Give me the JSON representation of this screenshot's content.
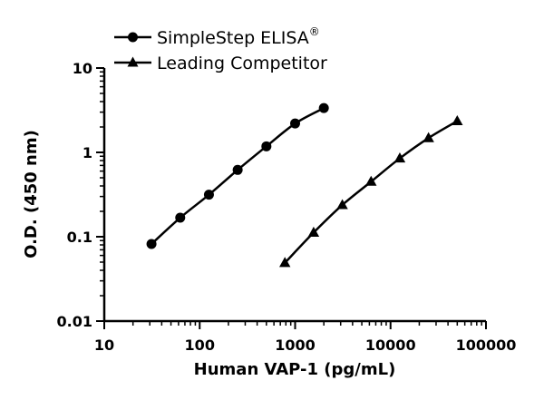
{
  "chart_data": {
    "type": "line",
    "xlabel": "Human VAP-1 (pg/mL)",
    "ylabel": "O.D. (450 nm)",
    "x_scale": "log",
    "y_scale": "log",
    "xlim": [
      10,
      100000
    ],
    "ylim": [
      0.01,
      10
    ],
    "x_ticks": [
      "10",
      "100",
      "1000",
      "10000",
      "100000"
    ],
    "y_ticks": [
      "10",
      "1",
      "0.1",
      "0.01"
    ],
    "grid": false,
    "legend_position": "top",
    "series": [
      {
        "name": "SimpleStep ELISA",
        "name_superscript": "®",
        "marker": "circle",
        "color": "#000000",
        "x": [
          31.25,
          62.5,
          125,
          250,
          500,
          1000,
          2000
        ],
        "y": [
          0.082,
          0.168,
          0.315,
          0.62,
          1.18,
          2.2,
          3.35
        ]
      },
      {
        "name": "Leading Competitor",
        "marker": "triangle",
        "color": "#000000",
        "x": [
          781,
          1563,
          3125,
          6250,
          12500,
          25000,
          50000
        ],
        "y": [
          0.049,
          0.112,
          0.238,
          0.45,
          0.85,
          1.48,
          2.35
        ]
      }
    ]
  }
}
